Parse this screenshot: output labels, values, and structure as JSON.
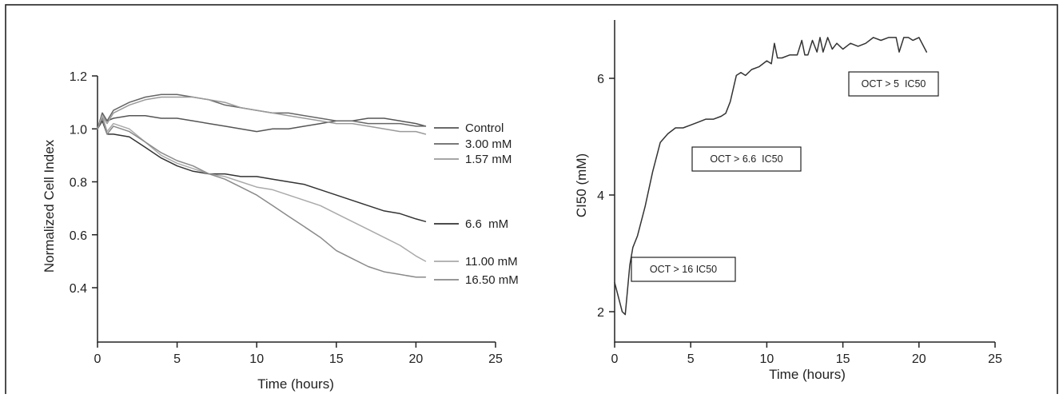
{
  "chart_data": [
    {
      "type": "line",
      "xlabel": "Time (hours)",
      "ylabel": "Normalized Cell Index",
      "xlim": [
        0,
        25
      ],
      "ylim": [
        0,
        1.2
      ],
      "xticks": [
        0,
        5,
        10,
        15,
        20,
        25
      ],
      "yticks": [
        0.4,
        0.6,
        0.8,
        1.0,
        1.2
      ],
      "xtick_labels": [
        "0",
        "5",
        "10",
        "15",
        "20",
        "25"
      ],
      "ytick_labels": [
        "0.4",
        "0.6",
        "0.8",
        "1.0",
        "1.2"
      ],
      "grid": false,
      "legend_placement": "right",
      "series": [
        {
          "name": "Control",
          "color": "#555555",
          "x": [
            0,
            0.3,
            0.6,
            1,
            2,
            3,
            4,
            5,
            6,
            7,
            8,
            9,
            10,
            11,
            12,
            13,
            14,
            15,
            16,
            17,
            18,
            19,
            20,
            20.6
          ],
          "y": [
            1.0,
            1.06,
            1.03,
            1.04,
            1.05,
            1.05,
            1.04,
            1.04,
            1.03,
            1.02,
            1.01,
            1.0,
            0.99,
            1.0,
            1.0,
            1.01,
            1.02,
            1.03,
            1.03,
            1.04,
            1.04,
            1.03,
            1.02,
            1.01
          ]
        },
        {
          "name": "3.00 mM",
          "color": "#666666",
          "x": [
            0,
            0.3,
            0.6,
            1,
            2,
            3,
            4,
            5,
            6,
            7,
            8,
            9,
            10,
            11,
            12,
            13,
            14,
            15,
            16,
            17,
            18,
            19,
            20,
            20.6
          ],
          "y": [
            1.0,
            1.06,
            1.03,
            1.07,
            1.1,
            1.12,
            1.13,
            1.13,
            1.12,
            1.11,
            1.09,
            1.08,
            1.07,
            1.06,
            1.06,
            1.05,
            1.04,
            1.03,
            1.03,
            1.02,
            1.02,
            1.02,
            1.01,
            1.01
          ]
        },
        {
          "name": "1.57 mM",
          "color": "#9a9a9a",
          "x": [
            0,
            0.3,
            0.6,
            1,
            2,
            3,
            4,
            5,
            6,
            7,
            8,
            9,
            10,
            11,
            12,
            13,
            14,
            15,
            16,
            17,
            18,
            19,
            20,
            20.6
          ],
          "y": [
            1.0,
            1.05,
            1.02,
            1.06,
            1.09,
            1.11,
            1.12,
            1.12,
            1.12,
            1.11,
            1.1,
            1.08,
            1.07,
            1.06,
            1.05,
            1.04,
            1.03,
            1.02,
            1.02,
            1.01,
            1.0,
            0.99,
            0.99,
            0.98
          ]
        },
        {
          "name": "6.6  mM",
          "color": "#333333",
          "x": [
            0,
            0.3,
            0.6,
            1,
            2,
            3,
            4,
            5,
            6,
            7,
            8,
            9,
            10,
            11,
            12,
            13,
            14,
            15,
            16,
            17,
            18,
            19,
            20,
            20.6
          ],
          "y": [
            1.0,
            1.03,
            0.98,
            0.98,
            0.97,
            0.93,
            0.89,
            0.86,
            0.84,
            0.83,
            0.83,
            0.82,
            0.82,
            0.81,
            0.8,
            0.79,
            0.77,
            0.75,
            0.73,
            0.71,
            0.69,
            0.68,
            0.66,
            0.65
          ]
        },
        {
          "name": "11.00 mM",
          "color": "#aaaaaa",
          "x": [
            0,
            0.3,
            0.6,
            1,
            2,
            3,
            4,
            5,
            6,
            7,
            8,
            9,
            10,
            11,
            12,
            13,
            14,
            15,
            16,
            17,
            18,
            19,
            20,
            20.6
          ],
          "y": [
            1.0,
            1.05,
            0.99,
            1.02,
            1.0,
            0.95,
            0.9,
            0.87,
            0.85,
            0.83,
            0.82,
            0.8,
            0.78,
            0.77,
            0.75,
            0.73,
            0.71,
            0.68,
            0.65,
            0.62,
            0.59,
            0.56,
            0.52,
            0.5
          ]
        },
        {
          "name": "16.50 mM",
          "color": "#8a8a8a",
          "x": [
            0,
            0.3,
            0.6,
            1,
            2,
            3,
            4,
            5,
            6,
            7,
            8,
            9,
            10,
            11,
            12,
            13,
            14,
            15,
            16,
            17,
            18,
            19,
            20,
            20.6
          ],
          "y": [
            1.0,
            1.04,
            0.98,
            1.01,
            0.99,
            0.95,
            0.91,
            0.88,
            0.86,
            0.83,
            0.81,
            0.78,
            0.75,
            0.71,
            0.67,
            0.63,
            0.59,
            0.54,
            0.51,
            0.48,
            0.46,
            0.45,
            0.44,
            0.44
          ]
        }
      ]
    },
    {
      "type": "line",
      "xlabel": "Time (hours)",
      "ylabel": "CI50 (mM)",
      "xlim": [
        0,
        25
      ],
      "ylim": [
        1.5,
        7
      ],
      "xticks": [
        0,
        5,
        10,
        15,
        20,
        25
      ],
      "yticks": [
        2,
        4,
        6
      ],
      "xtick_labels": [
        "0",
        "5",
        "10",
        "15",
        "20",
        "25"
      ],
      "ytick_labels": [
        "2",
        "4",
        "6"
      ],
      "grid": false,
      "series": [
        {
          "color": "#333333",
          "x": [
            0,
            0.5,
            0.7,
            1.0,
            1.2,
            1.5,
            2.0,
            2.5,
            3.0,
            3.5,
            4.0,
            4.5,
            5.0,
            5.5,
            6.0,
            6.5,
            7.0,
            7.3,
            7.6,
            8.0,
            8.3,
            8.6,
            9.0,
            9.5,
            10.0,
            10.3,
            10.5,
            10.7,
            11.0,
            11.5,
            12.0,
            12.3,
            12.5,
            12.7,
            13.0,
            13.3,
            13.5,
            13.7,
            14.0,
            14.3,
            14.6,
            15.0,
            15.5,
            16.0,
            16.5,
            17.0,
            17.5,
            18.0,
            18.5,
            18.7,
            19.0,
            19.3,
            19.6,
            20.0,
            20.5
          ],
          "y": [
            2.5,
            2.0,
            1.95,
            2.8,
            3.1,
            3.3,
            3.8,
            4.4,
            4.9,
            5.05,
            5.15,
            5.15,
            5.2,
            5.25,
            5.3,
            5.3,
            5.35,
            5.4,
            5.6,
            6.05,
            6.1,
            6.05,
            6.15,
            6.2,
            6.3,
            6.25,
            6.6,
            6.35,
            6.35,
            6.4,
            6.4,
            6.65,
            6.4,
            6.4,
            6.65,
            6.45,
            6.7,
            6.45,
            6.7,
            6.5,
            6.6,
            6.5,
            6.6,
            6.55,
            6.6,
            6.7,
            6.65,
            6.7,
            6.7,
            6.45,
            6.7,
            6.7,
            6.65,
            6.7,
            6.45
          ]
        }
      ],
      "annotations": [
        {
          "text": "OCT > 16 IC50"
        },
        {
          "text": "OCT > 6.6  IC50"
        },
        {
          "text": "OCT > 5  IC50"
        }
      ]
    }
  ]
}
